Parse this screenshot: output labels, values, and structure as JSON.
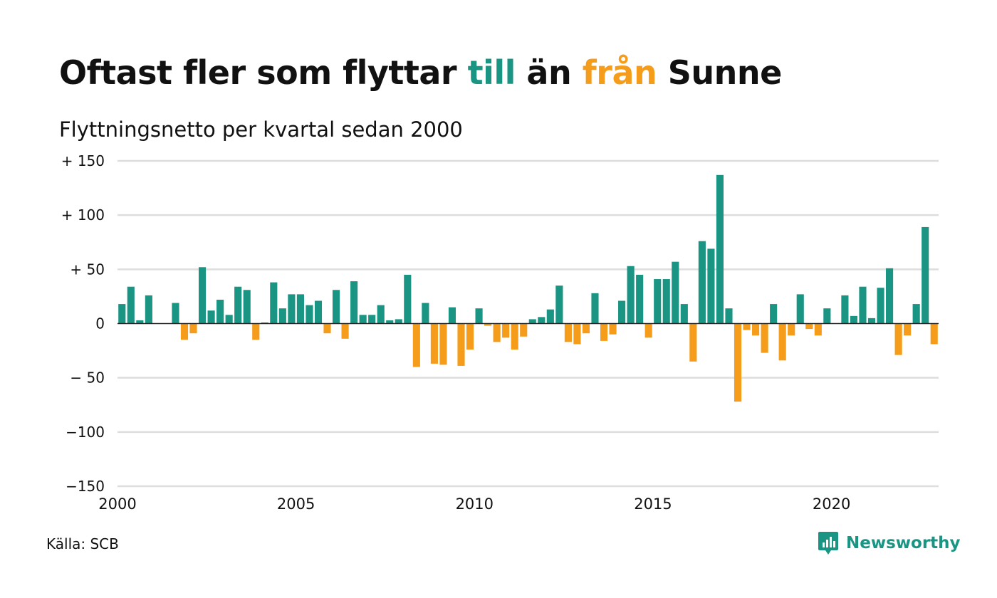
{
  "title": {
    "part1": "Oftast fler som flyttar ",
    "till": "till",
    "part2": " än ",
    "fran": "från",
    "part3": " Sunne"
  },
  "colors": {
    "positive": "#1a9584",
    "negative": "#f59c1a",
    "grid": "#dddddd",
    "zero_line": "#222222"
  },
  "footer": {
    "source": "Källa: SCB",
    "logo_text": "Newsworthy",
    "logo_icon": "newsworthy-logo-icon"
  },
  "chart_data": {
    "type": "bar",
    "subtitle": "Flyttningsnetto per kvartal sedan 2000",
    "x_ticks": [
      "2000",
      "2005",
      "2010",
      "2015",
      "2020"
    ],
    "y_ticks": [
      {
        "value": 150,
        "label": "+ 150"
      },
      {
        "value": 100,
        "label": "+ 100"
      },
      {
        "value": 50,
        "label": "+  50"
      },
      {
        "value": 0,
        "label": "0"
      },
      {
        "value": -50,
        "label": "− 50"
      },
      {
        "value": -100,
        "label": "−100"
      },
      {
        "value": -150,
        "label": "−150"
      }
    ],
    "ylim": [
      -150,
      150
    ],
    "grid": true,
    "start_year": 2000,
    "periods_per_year": 4,
    "values": [
      18,
      34,
      3,
      26,
      0,
      0,
      19,
      -15,
      -9,
      52,
      12,
      22,
      8,
      34,
      31,
      -15,
      1,
      38,
      14,
      27,
      27,
      17,
      21,
      -9,
      31,
      -14,
      39,
      8,
      8,
      17,
      3,
      4,
      45,
      -40,
      19,
      -37,
      -38,
      15,
      -39,
      -24,
      14,
      -2,
      -17,
      -13,
      -24,
      -12,
      4,
      6,
      13,
      35,
      -17,
      -19,
      -9,
      28,
      -16,
      -10,
      21,
      53,
      45,
      -13,
      41,
      41,
      57,
      18,
      -35,
      76,
      69,
      137,
      14,
      -72,
      -6,
      -11,
      -27,
      18,
      -34,
      -11,
      27,
      -5,
      -11,
      14,
      0,
      26,
      7,
      34,
      5,
      33,
      51,
      -29,
      -11,
      18,
      89,
      -19
    ]
  }
}
